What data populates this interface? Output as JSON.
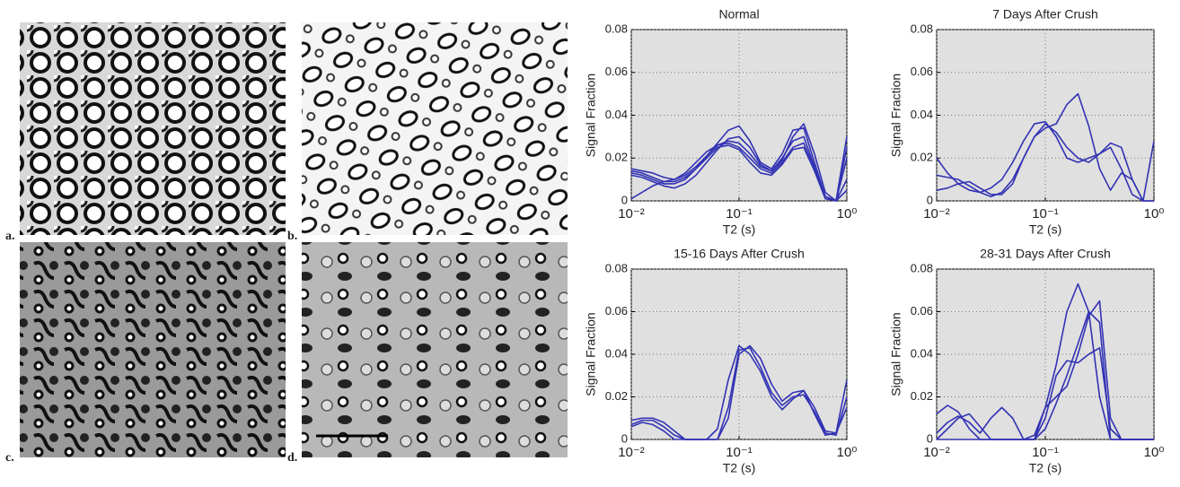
{
  "panels": [
    {
      "label": "a."
    },
    {
      "label": "b."
    },
    {
      "label": "c."
    },
    {
      "label": "d."
    }
  ],
  "chart_data": [
    {
      "type": "line",
      "title": "Normal",
      "x_label": "T2 (s)",
      "y_label": "Signal Fraction",
      "log_x": true,
      "grid": true,
      "xlim": [
        0.01,
        1
      ],
      "xticks": [
        {
          "value": 0.01,
          "label": "10⁻²"
        },
        {
          "value": 0.1,
          "label": "10⁻¹"
        },
        {
          "value": 1,
          "label": "10⁰"
        }
      ],
      "ylim": [
        0,
        0.08
      ],
      "yticks": [
        0,
        0.02,
        0.04,
        0.06,
        0.08
      ],
      "x": [
        0.01,
        0.0126,
        0.0158,
        0.02,
        0.0251,
        0.0316,
        0.0398,
        0.0501,
        0.0631,
        0.0794,
        0.1,
        0.126,
        0.158,
        0.2,
        0.251,
        0.316,
        0.398,
        0.501,
        0.631,
        0.794,
        1
      ],
      "series": [
        {
          "color": "#3232b4",
          "values": [
            0.013,
            0.012,
            0.01,
            0.008,
            0.008,
            0.01,
            0.015,
            0.021,
            0.027,
            0.033,
            0.035,
            0.028,
            0.018,
            0.015,
            0.022,
            0.033,
            0.034,
            0.018,
            0.002,
            0,
            0.03
          ]
        },
        {
          "color": "#3232b4",
          "values": [
            0.015,
            0.014,
            0.013,
            0.011,
            0.01,
            0.012,
            0.016,
            0.021,
            0.026,
            0.028,
            0.027,
            0.022,
            0.016,
            0.014,
            0.02,
            0.028,
            0.03,
            0.016,
            0.002,
            0,
            0.02
          ]
        },
        {
          "color": "#3232b4",
          "values": [
            0.001,
            0.004,
            0.007,
            0.009,
            0.01,
            0.013,
            0.018,
            0.023,
            0.026,
            0.027,
            0.025,
            0.02,
            0.015,
            0.013,
            0.018,
            0.025,
            0.027,
            0.015,
            0.002,
            0,
            0.01
          ]
        },
        {
          "color": "#3232b4",
          "values": [
            0.012,
            0.011,
            0.009,
            0.007,
            0.006,
            0.008,
            0.012,
            0.018,
            0.024,
            0.029,
            0.03,
            0.025,
            0.017,
            0.014,
            0.019,
            0.03,
            0.036,
            0.022,
            0.004,
            0,
            0.025
          ]
        },
        {
          "color": "#3232b4",
          "values": [
            0.014,
            0.013,
            0.011,
            0.009,
            0.009,
            0.011,
            0.015,
            0.02,
            0.025,
            0.026,
            0.024,
            0.018,
            0.013,
            0.012,
            0.017,
            0.024,
            0.025,
            0.014,
            0.001,
            0,
            0.005
          ]
        }
      ]
    },
    {
      "type": "line",
      "title": "7 Days After Crush",
      "x_label": "T2 (s)",
      "y_label": "Signal Fraction",
      "log_x": true,
      "grid": true,
      "xlim": [
        0.01,
        1
      ],
      "xticks": [
        {
          "value": 0.01,
          "label": "10⁻²"
        },
        {
          "value": 0.1,
          "label": "10⁻¹"
        },
        {
          "value": 1,
          "label": "10⁰"
        }
      ],
      "ylim": [
        0,
        0.08
      ],
      "yticks": [
        0,
        0.02,
        0.04,
        0.06,
        0.08
      ],
      "x": [
        0.01,
        0.0126,
        0.0158,
        0.02,
        0.0251,
        0.0316,
        0.0398,
        0.0501,
        0.0631,
        0.0794,
        0.1,
        0.126,
        0.158,
        0.2,
        0.251,
        0.316,
        0.398,
        0.501,
        0.631,
        0.794,
        1
      ],
      "series": [
        {
          "color": "#3232b4",
          "values": [
            0.02,
            0.013,
            0.008,
            0.005,
            0.004,
            0.006,
            0.01,
            0.018,
            0.028,
            0.036,
            0.037,
            0.03,
            0.02,
            0.018,
            0.02,
            0.022,
            0.027,
            0.025,
            0.01,
            0,
            0.028
          ]
        },
        {
          "color": "#3232b4",
          "values": [
            0.012,
            0.011,
            0.01,
            0.007,
            0.004,
            0.002,
            0.004,
            0.01,
            0.02,
            0.03,
            0.034,
            0.036,
            0.045,
            0.05,
            0.035,
            0.015,
            0.005,
            0.013,
            0.01,
            0,
            0
          ]
        },
        {
          "color": "#3232b4",
          "values": [
            0.005,
            0.006,
            0.008,
            0.009,
            0.006,
            0.003,
            0.003,
            0.008,
            0.02,
            0.03,
            0.036,
            0.032,
            0.025,
            0.02,
            0.018,
            0.022,
            0.025,
            0.015,
            0.003,
            0,
            0
          ]
        }
      ]
    },
    {
      "type": "line",
      "title": "15-16 Days After Crush",
      "x_label": "T2 (s)",
      "y_label": "Signal Fraction",
      "log_x": true,
      "grid": true,
      "xlim": [
        0.01,
        1
      ],
      "xticks": [
        {
          "value": 0.01,
          "label": "10⁻²"
        },
        {
          "value": 0.1,
          "label": "10⁻¹"
        },
        {
          "value": 1,
          "label": "10⁰"
        }
      ],
      "ylim": [
        0,
        0.08
      ],
      "yticks": [
        0,
        0.02,
        0.04,
        0.06,
        0.08
      ],
      "x": [
        0.01,
        0.0126,
        0.0158,
        0.02,
        0.0251,
        0.0316,
        0.0398,
        0.0501,
        0.0631,
        0.0794,
        0.1,
        0.126,
        0.158,
        0.2,
        0.251,
        0.316,
        0.398,
        0.501,
        0.631,
        0.794,
        1
      ],
      "series": [
        {
          "color": "#3232b4",
          "values": [
            0.007,
            0.009,
            0.009,
            0.006,
            0.002,
            0,
            0,
            0,
            0,
            0.01,
            0.04,
            0.044,
            0.038,
            0.026,
            0.018,
            0.022,
            0.023,
            0.015,
            0.004,
            0.003,
            0.028
          ]
        },
        {
          "color": "#3232b4",
          "values": [
            0.009,
            0.01,
            0.01,
            0.008,
            0.004,
            0,
            0,
            0,
            0,
            0.015,
            0.042,
            0.043,
            0.034,
            0.022,
            0.016,
            0.02,
            0.021,
            0.013,
            0.003,
            0.002,
            0.02
          ]
        },
        {
          "color": "#3232b4",
          "values": [
            0.006,
            0.008,
            0.007,
            0.004,
            0,
            0,
            0,
            0,
            0.005,
            0.028,
            0.044,
            0.04,
            0.032,
            0.02,
            0.014,
            0.019,
            0.023,
            0.012,
            0.002,
            0.003,
            0.015
          ]
        }
      ]
    },
    {
      "type": "line",
      "title": "28-31 Days After Crush",
      "x_label": "T2 (s)",
      "y_label": "Signal Fraction",
      "log_x": true,
      "grid": true,
      "xlim": [
        0.01,
        1
      ],
      "xticks": [
        {
          "value": 0.01,
          "label": "10⁻²"
        },
        {
          "value": 0.1,
          "label": "10⁻¹"
        },
        {
          "value": 1,
          "label": "10⁰"
        }
      ],
      "ylim": [
        0,
        0.08
      ],
      "yticks": [
        0,
        0.02,
        0.04,
        0.06,
        0.08
      ],
      "x": [
        0.01,
        0.0126,
        0.0158,
        0.02,
        0.0251,
        0.0316,
        0.0398,
        0.0501,
        0.0631,
        0.0794,
        0.1,
        0.126,
        0.158,
        0.2,
        0.251,
        0.316,
        0.398,
        0.501,
        0.631,
        0.794,
        1
      ],
      "series": [
        {
          "color": "#3232b4",
          "values": [
            0.012,
            0.016,
            0.013,
            0.005,
            0,
            0,
            0,
            0,
            0,
            0,
            0.015,
            0.035,
            0.06,
            0.073,
            0.06,
            0.02,
            0,
            0,
            0,
            0,
            0
          ]
        },
        {
          "color": "#3232b4",
          "values": [
            0.003,
            0.008,
            0.011,
            0.008,
            0.003,
            0.01,
            0.015,
            0.01,
            0,
            0,
            0.005,
            0.017,
            0.03,
            0.045,
            0.06,
            0.055,
            0,
            0,
            0,
            0,
            0
          ]
        },
        {
          "color": "#3232b4",
          "values": [
            0,
            0.005,
            0.01,
            0.012,
            0.006,
            0,
            0,
            0,
            0,
            0,
            0.01,
            0.03,
            0.037,
            0.036,
            0.04,
            0.043,
            0.005,
            0,
            0,
            0,
            0
          ]
        },
        {
          "color": "#3232b4",
          "values": [
            0,
            0,
            0,
            0,
            0,
            0,
            0,
            0,
            0,
            0.002,
            0.015,
            0.02,
            0.025,
            0.04,
            0.058,
            0.065,
            0.01,
            0,
            0,
            0,
            0
          ]
        }
      ]
    }
  ]
}
